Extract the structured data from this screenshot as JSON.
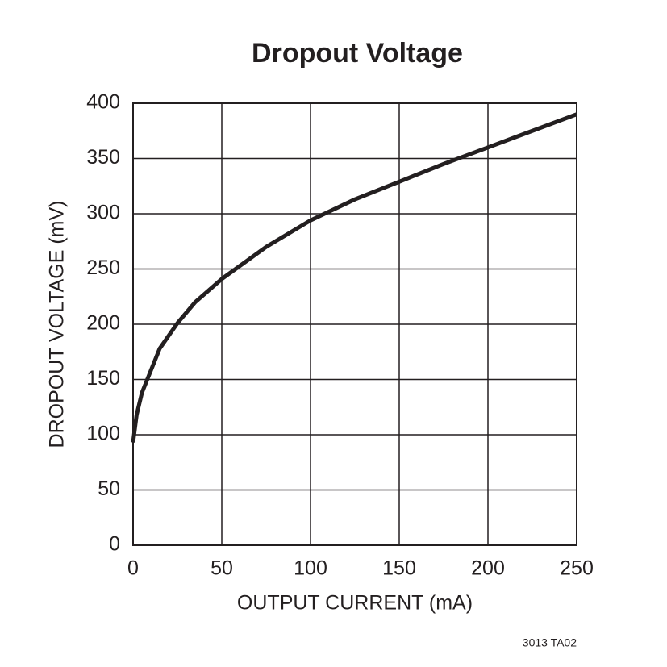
{
  "chart_data": {
    "type": "line",
    "title": "Dropout Voltage",
    "xlabel": "OUTPUT CURRENT (mA)",
    "ylabel": "DROPOUT VOLTAGE (mV)",
    "note": "3013 TA02",
    "x": [
      0,
      2,
      5,
      8,
      15,
      25,
      35,
      50,
      75,
      100,
      125,
      150,
      175,
      200,
      225,
      250
    ],
    "series": [
      {
        "name": "Dropout Voltage",
        "color": "#231f20",
        "values": [
          93,
          118,
          138,
          150,
          178,
          201,
          220,
          241,
          270,
          294,
          313,
          329,
          345,
          360,
          375,
          390
        ]
      }
    ],
    "xlim": [
      0,
      250
    ],
    "xticks": [
      0,
      50,
      100,
      150,
      200,
      250
    ],
    "ylim": [
      0,
      400
    ],
    "yticks": [
      0,
      50,
      100,
      150,
      200,
      250,
      300,
      350,
      400
    ],
    "grid": true
  }
}
